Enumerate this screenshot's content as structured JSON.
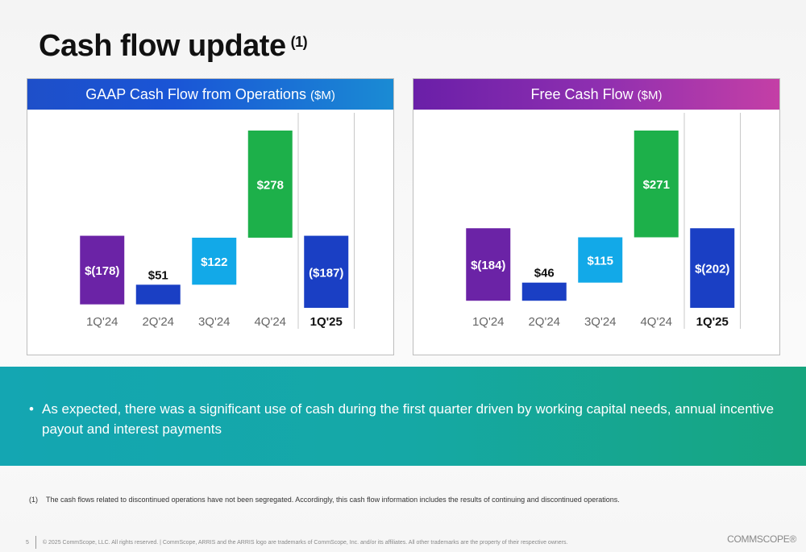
{
  "page": {
    "title": "Cash flow update",
    "title_footnote_ref": "(1)"
  },
  "chart_data": [
    {
      "type": "bar",
      "style": "waterfall",
      "title": "GAAP Cash Flow from Operations",
      "unit": "($M)",
      "categories": [
        "1Q'24",
        "2Q'24",
        "3Q'24",
        "4Q'24",
        "1Q'25"
      ],
      "values": [
        -178,
        51,
        122,
        278,
        -187
      ],
      "value_labels": [
        "$(178)",
        "$51",
        "$122",
        "$278",
        "($187)"
      ],
      "bar_colors": [
        "#6b23a6",
        "#1a3fc4",
        "#12a9e8",
        "#1db04a",
        "#1a3fc4"
      ],
      "highlight_category": "1Q'25"
    },
    {
      "type": "bar",
      "style": "waterfall",
      "title": "Free Cash Flow",
      "unit": "($M)",
      "categories": [
        "1Q'24",
        "2Q'24",
        "3Q'24",
        "4Q'24",
        "1Q'25"
      ],
      "values": [
        -184,
        46,
        115,
        271,
        -202
      ],
      "value_labels": [
        "$(184)",
        "$46",
        "$115",
        "$271",
        "$(202)"
      ],
      "bar_colors": [
        "#6b23a6",
        "#1a3fc4",
        "#12a9e8",
        "#1db04a",
        "#1a3fc4"
      ],
      "highlight_category": "1Q'25"
    }
  ],
  "commentary": {
    "bullet": "As expected, there was a significant use of cash during the first quarter driven by working capital needs, annual incentive payout and interest payments"
  },
  "footnote": {
    "marker": "(1)",
    "text": "The cash flows related to discontinued operations have not been segregated. Accordingly, this cash flow information includes the results of continuing and discontinued operations."
  },
  "footer": {
    "page_number": "5",
    "legal": "© 2025 CommScope, LLC. All rights reserved. | CommScope, ARRIS and the ARRIS logo are trademarks of CommScope, Inc. and/or its affiliates. All other trademarks are the property of their respective owners.",
    "logo_text": "COMMSCOPE®"
  },
  "colors": {
    "band_start": "#14a6b2",
    "band_end": "#16a57e"
  }
}
